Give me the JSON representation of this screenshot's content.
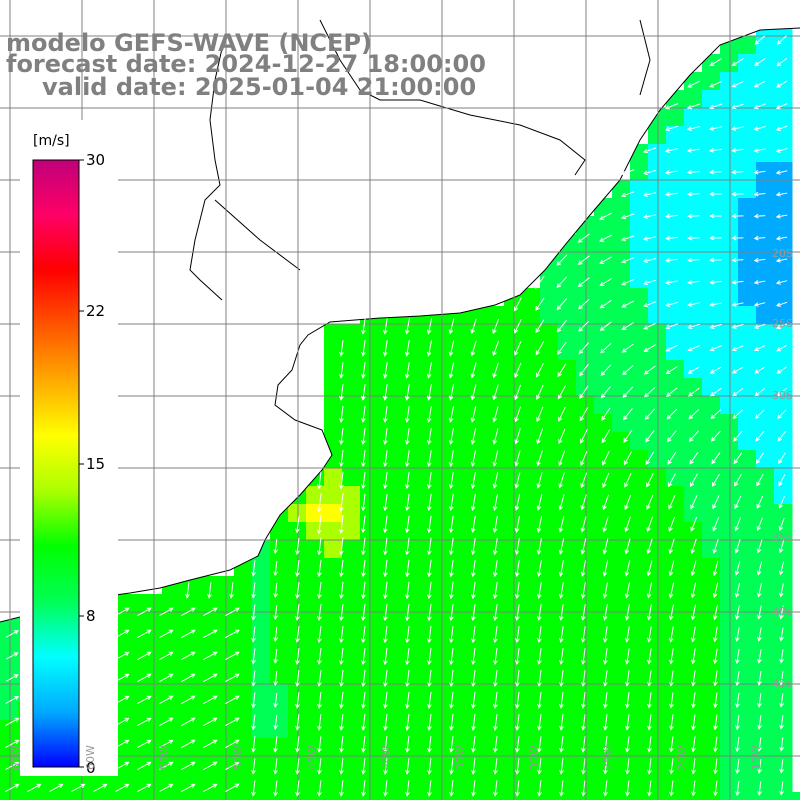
{
  "title": {
    "model": "modelo GEFS-WAVE (NCEP)",
    "forecast": "forecast date: 2024-12-27 18:00:00",
    "valid": "valid date: 2025-01-04 21:00:00"
  },
  "colorbar": {
    "unit": "[m/s]",
    "ticks": [
      "30",
      "22",
      "15",
      "8",
      "0"
    ],
    "min": 0,
    "max": 30,
    "colors": [
      "#0000ff",
      "#00aaff",
      "#00ffff",
      "#00ff55",
      "#00ff00",
      "#aaff00",
      "#ffff00",
      "#ffaa00",
      "#ff5500",
      "#ff0000",
      "#ff0066",
      "#c0007a"
    ]
  },
  "axis_labels": {
    "bottom": [
      "65W",
      "60W",
      "55W",
      "50W",
      "45W",
      "40W",
      "35W",
      "30W",
      "25W",
      "20W",
      "15W"
    ],
    "right": [
      "20S",
      "25S",
      "30S",
      "35S",
      "40S",
      "45S"
    ]
  },
  "field": {
    "variable": "wind speed",
    "land_color": "#ffffff",
    "coast_color": "#000000",
    "grid_color": "#808080",
    "arrow_color": "#ffffff"
  }
}
